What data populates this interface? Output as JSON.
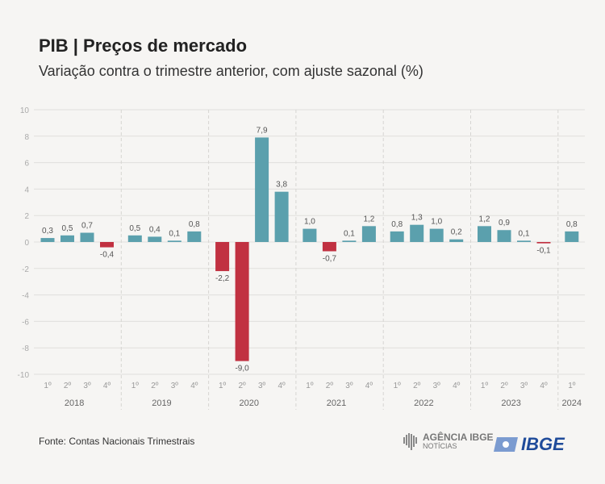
{
  "header": {
    "title": "PIB | Preços de mercado",
    "subtitle": "Variação contra o trimestre anterior, com ajuste sazonal (%)"
  },
  "footer": {
    "source": "Fonte: Contas Nacionais Trimestrais",
    "agencia_line1": "AGÊNCIA IBGE",
    "agencia_line2": "NOTÍCIAS",
    "ibge_logo": "IBGE"
  },
  "colors": {
    "positive": "#5ba0ad",
    "negative": "#c13141",
    "grid": "#e0dfdc",
    "axis_text": "#aaaaaa"
  },
  "chart_data": {
    "type": "bar",
    "title": "PIB | Preços de mercado",
    "ylabel": "%",
    "ylim": [
      -10,
      10
    ],
    "yticks": [
      10,
      8,
      6,
      4,
      2,
      0,
      -2,
      -4,
      -6,
      -8,
      -10
    ],
    "grid": true,
    "groups": [
      {
        "year": "2018",
        "quarters": [
          "1º",
          "2º",
          "3º",
          "4º"
        ],
        "values": [
          0.3,
          0.5,
          0.7,
          -0.4
        ],
        "labels": [
          "0,3",
          "0,5",
          "0,7",
          "-0,4"
        ]
      },
      {
        "year": "2019",
        "quarters": [
          "1º",
          "2º",
          "3º",
          "4º"
        ],
        "values": [
          0.5,
          0.4,
          0.1,
          0.8
        ],
        "labels": [
          "0,5",
          "0,4",
          "0,1",
          "0,8"
        ]
      },
      {
        "year": "2020",
        "quarters": [
          "1º",
          "2º",
          "3º",
          "4º"
        ],
        "values": [
          -2.2,
          -9.0,
          7.9,
          3.8
        ],
        "labels": [
          "-2,2",
          "-9,0",
          "7,9",
          "3,8"
        ]
      },
      {
        "year": "2021",
        "quarters": [
          "1º",
          "2º",
          "3º",
          "4º"
        ],
        "values": [
          1.0,
          -0.7,
          0.1,
          1.2
        ],
        "labels": [
          "1,0",
          "-0,7",
          "0,1",
          "1,2"
        ]
      },
      {
        "year": "2022",
        "quarters": [
          "1º",
          "2º",
          "3º",
          "4º"
        ],
        "values": [
          0.8,
          1.3,
          1.0,
          0.2
        ],
        "labels": [
          "0,8",
          "1,3",
          "1,0",
          "0,2"
        ]
      },
      {
        "year": "2023",
        "quarters": [
          "1º",
          "2º",
          "3º",
          "4º"
        ],
        "values": [
          1.2,
          0.9,
          0.1,
          -0.1
        ],
        "labels": [
          "1,2",
          "0,9",
          "0,1",
          "-0,1"
        ]
      },
      {
        "year": "2024",
        "quarters": [
          "1º"
        ],
        "values": [
          0.8
        ],
        "labels": [
          "0,8"
        ]
      }
    ]
  }
}
